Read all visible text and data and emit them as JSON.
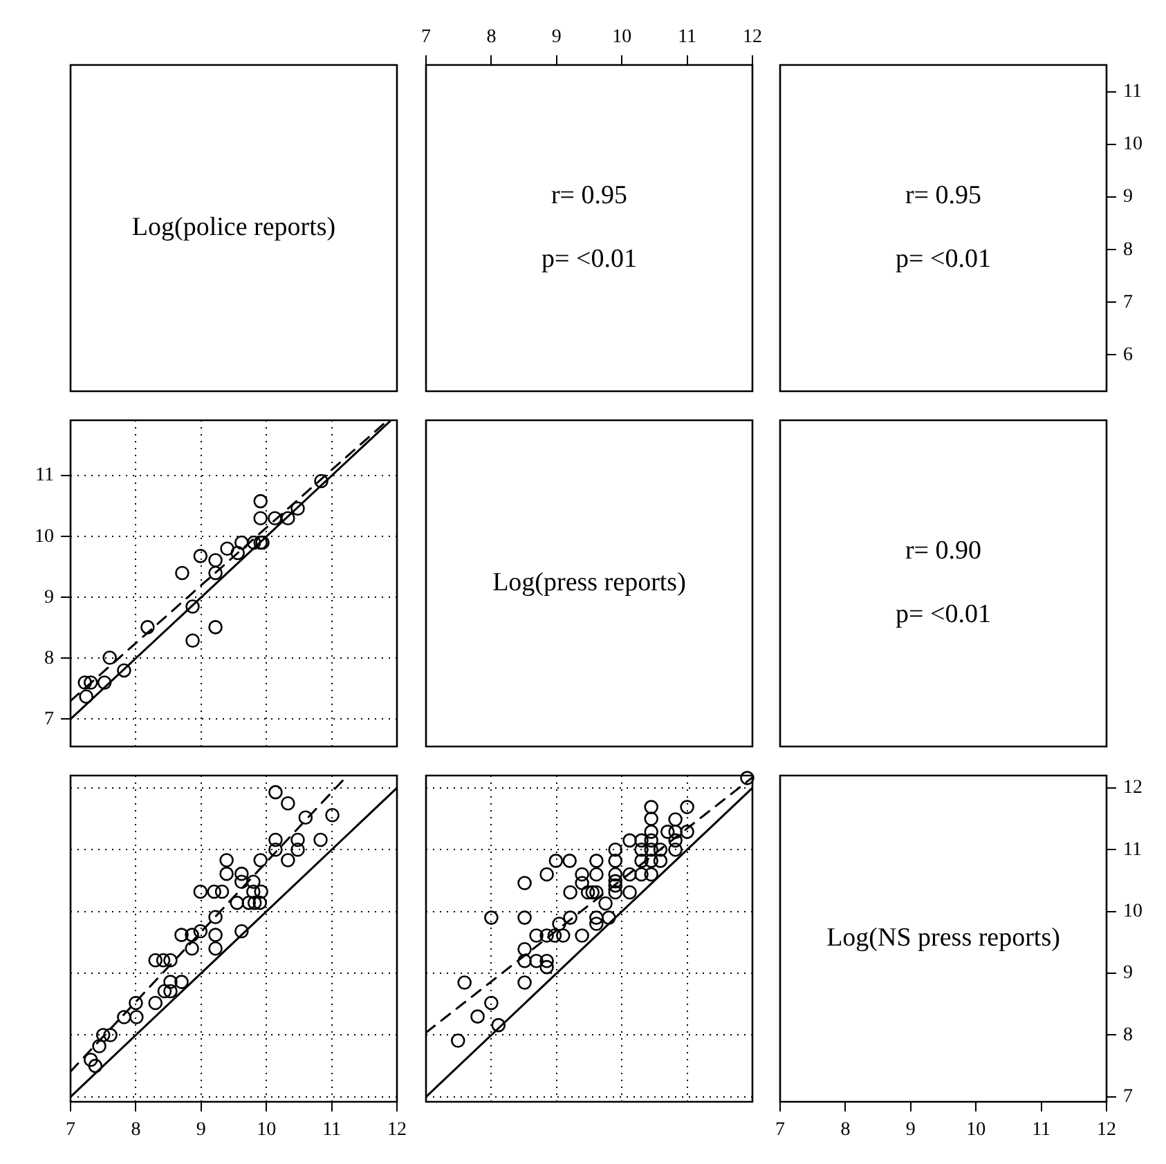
{
  "chart_data": [
    {
      "type": "other",
      "annotations": [
        "Log(police reports)"
      ]
    },
    {
      "type": "scatter",
      "annotations": [
        "r= 0.95",
        "p= <0.01"
      ],
      "xlim": [
        7,
        12
      ],
      "xticks": [
        7,
        8,
        9,
        10,
        11,
        12
      ],
      "ylim": [
        5.31,
        11.51
      ],
      "yticks": [
        6,
        7,
        8,
        9,
        10,
        11
      ],
      "tick_labels": "x"
    },
    {
      "type": "scatter",
      "annotations": [
        "r= 0.95",
        "p= <0.01"
      ],
      "xlim": [
        7,
        12
      ],
      "xticks": [
        7,
        8,
        9,
        10,
        11,
        12
      ],
      "ylim": [
        5.31,
        11.51
      ],
      "yticks": [
        6,
        7,
        8,
        9,
        10,
        11
      ],
      "tick_labels": "y"
    },
    {
      "type": "scatter",
      "xlim": [
        7,
        12
      ],
      "xticks": [
        7,
        8,
        9,
        10,
        11,
        12
      ],
      "ylim": [
        6.55,
        11.91
      ],
      "yticks": [
        7,
        8,
        9,
        10,
        11
      ],
      "tick_labels": "y",
      "grid": true,
      "series": [
        {
          "type": "scatter",
          "marker": "circle",
          "color": "#000000",
          "x": [
            7.24,
            7.22,
            7.31,
            7.52,
            7.6,
            7.82,
            8.18,
            8.71,
            8.87,
            8.87,
            8.99,
            9.22,
            9.22,
            9.22,
            9.4,
            9.56,
            9.62,
            9.81,
            9.91,
            9.94,
            9.91,
            9.91,
            10.13,
            10.33,
            10.48,
            10.84
          ],
          "values": [
            7.37,
            7.6,
            7.6,
            7.6,
            8.01,
            7.8,
            8.51,
            9.4,
            8.29,
            8.85,
            9.68,
            9.61,
            9.4,
            8.51,
            9.8,
            9.73,
            9.9,
            9.9,
            9.9,
            9.9,
            10.3,
            10.58,
            10.3,
            10.3,
            10.46,
            10.91
          ]
        },
        {
          "type": "line",
          "marker": "none",
          "line_style": "solid",
          "color": "#000000",
          "x": [
            7,
            11.91
          ],
          "values": [
            7,
            11.91
          ]
        },
        {
          "type": "line",
          "marker": "none",
          "line_style": "dashed",
          "color": "#000000",
          "x": [
            7,
            11.86
          ],
          "values": [
            7.3,
            11.91
          ]
        }
      ]
    },
    {
      "type": "other",
      "annotations": [
        "Log(press reports)"
      ]
    },
    {
      "type": "other",
      "annotations": [
        "r= 0.90",
        "p= <0.01"
      ]
    },
    {
      "type": "scatter",
      "xlim": [
        7,
        12
      ],
      "xticks": [
        7,
        8,
        9,
        10,
        11,
        12
      ],
      "ylim": [
        6.92,
        12.2
      ],
      "yticks": [
        7,
        8,
        9,
        10,
        11,
        12
      ],
      "tick_labels": "x",
      "grid": true,
      "series": [
        {
          "type": "scatter",
          "marker": "circle",
          "color": "#000000",
          "x": [
            7.31,
            7.38,
            7.44,
            7.5,
            7.61,
            7.82,
            8,
            8.01,
            8.3,
            8.3,
            8.42,
            8.53,
            8.44,
            8.53,
            8.53,
            8.7,
            8.7,
            8.86,
            8.86,
            8.99,
            8.99,
            9.2,
            9.32,
            9.22,
            9.22,
            9.22,
            9.39,
            9.39,
            9.55,
            9.62,
            9.62,
            9.62,
            9.8,
            9.8,
            9.73,
            9.82,
            9.9,
            9.92,
            9.91,
            10.14,
            10.14,
            10.33,
            10.48,
            10.48,
            10.14,
            10.33,
            10.6,
            10.83,
            11.01
          ],
          "values": [
            7.6,
            7.5,
            7.82,
            8,
            8,
            8.29,
            8.52,
            8.29,
            8.52,
            9.21,
            9.21,
            9.21,
            8.71,
            8.71,
            8.86,
            8.86,
            9.62,
            9.62,
            9.4,
            9.68,
            10.32,
            10.32,
            10.32,
            9.91,
            9.62,
            9.4,
            10.83,
            10.61,
            10.14,
            10.61,
            10.48,
            9.68,
            10.48,
            10.32,
            10.14,
            10.14,
            10.14,
            10.32,
            10.83,
            11,
            11.16,
            10.83,
            11,
            11.16,
            11.93,
            11.75,
            11.52,
            11.16,
            11.56
          ]
        },
        {
          "type": "line",
          "marker": "none",
          "line_style": "solid",
          "color": "#000000",
          "x": [
            7,
            12
          ],
          "values": [
            7,
            12
          ]
        },
        {
          "type": "line",
          "marker": "none",
          "line_style": "dashed",
          "color": "#000000",
          "x": [
            7,
            11.24
          ],
          "values": [
            7.41,
            12.2
          ]
        }
      ]
    },
    {
      "type": "scatter",
      "xlim": [
        7,
        12
      ],
      "xticks": [
        7,
        8,
        9,
        10,
        11,
        12
      ],
      "ylim": [
        6.92,
        12.2
      ],
      "yticks": [
        7,
        8,
        9,
        10,
        11,
        12
      ],
      "tick_labels": false,
      "grid": true,
      "series": [
        {
          "type": "scatter",
          "marker": "circle",
          "color": "#000000",
          "x": [
            7.49,
            7.59,
            7.79,
            8,
            8.11,
            8,
            8.51,
            8.51,
            8.51,
            8.51,
            8.51,
            8.69,
            8.85,
            8.85,
            8.69,
            8.85,
            8.97,
            9.1,
            9.04,
            9.21,
            9.21,
            8.85,
            8.99,
            9.2,
            9.39,
            9.39,
            9.39,
            9.48,
            9.55,
            9.61,
            9.61,
            9.61,
            9.61,
            9.61,
            9.75,
            9.8,
            9.9,
            9.9,
            9.9,
            9.9,
            9.9,
            9.9,
            10.12,
            10.12,
            10.12,
            10.3,
            10.3,
            10.3,
            10.3,
            10.45,
            10.45,
            10.45,
            10.45,
            10.45,
            10.45,
            10.45,
            10.59,
            10.59,
            10.7,
            10.82,
            10.82,
            10.82,
            10.82,
            11,
            11,
            11.92
          ],
          "values": [
            7.91,
            8.85,
            8.3,
            8.52,
            8.16,
            9.9,
            8.85,
            9.2,
            9.39,
            9.9,
            10.46,
            9.2,
            9.2,
            9.1,
            9.61,
            9.61,
            9.61,
            9.61,
            9.8,
            9.9,
            10.31,
            10.6,
            10.82,
            10.82,
            9.61,
            10.46,
            10.6,
            10.31,
            10.31,
            10.31,
            10.6,
            10.82,
            9.8,
            9.9,
            10.13,
            9.9,
            10.31,
            10.42,
            10.49,
            10.6,
            10.82,
            11,
            10.31,
            10.6,
            11.15,
            10.6,
            10.82,
            11,
            11.15,
            10.6,
            10.82,
            11,
            11.15,
            11.29,
            11.5,
            11.69,
            10.82,
            11,
            11.29,
            11.49,
            11.29,
            11.15,
            11,
            11.29,
            11.69,
            12.16
          ]
        },
        {
          "type": "line",
          "marker": "none",
          "line_style": "solid",
          "color": "#000000",
          "x": [
            7,
            12
          ],
          "values": [
            7,
            12
          ]
        },
        {
          "type": "line",
          "marker": "none",
          "line_style": "dashed",
          "color": "#000000",
          "x": [
            7,
            12
          ],
          "values": [
            8.04,
            12.17
          ]
        }
      ]
    },
    {
      "type": "scatter",
      "annotations": [
        "Log(NS press reports)"
      ],
      "xlim": [
        7,
        12
      ],
      "xticks": [
        7,
        8,
        9,
        10,
        11,
        12
      ],
      "ylim": [
        6.92,
        12.2
      ],
      "yticks": [
        7,
        8,
        9,
        10,
        11,
        12
      ]
    }
  ]
}
